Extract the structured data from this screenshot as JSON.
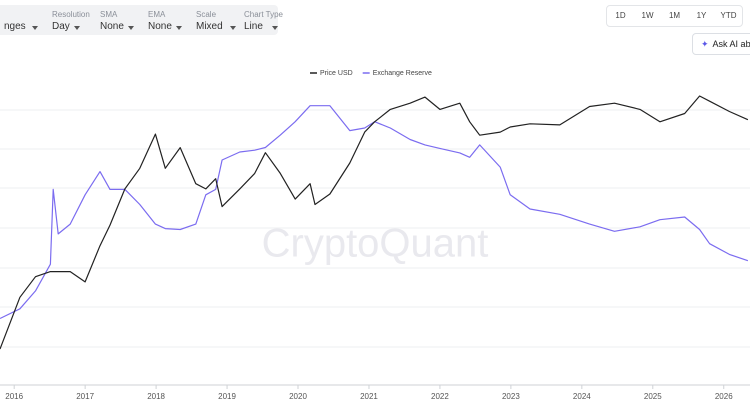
{
  "toolbar": {
    "controls": [
      {
        "value": "nges"
      },
      {
        "label": "Resolution",
        "value": "Day"
      },
      {
        "label": "SMA",
        "value": "None"
      },
      {
        "label": "EMA",
        "value": "None"
      },
      {
        "label": "Scale",
        "value": "Mixed"
      },
      {
        "label": "Chart Type",
        "value": "Line"
      }
    ],
    "ranges": [
      "1D",
      "1W",
      "1M",
      "1Y",
      "YTD"
    ],
    "ask_ai": "Ask AI abou"
  },
  "chart_data": {
    "type": "line",
    "watermark": "CryptoQuant",
    "x": [
      2015.8,
      2016.08,
      2016.3,
      2016.51,
      2016.55,
      2016.62,
      2016.79,
      2017.0,
      2017.21,
      2017.35,
      2017.56,
      2017.77,
      2017.99,
      2018.13,
      2018.34,
      2018.56,
      2018.7,
      2018.84,
      2018.93,
      2019.18,
      2019.39,
      2019.54,
      2019.75,
      2019.96,
      2020.17,
      2020.24,
      2020.45,
      2020.73,
      2020.94,
      2021.08,
      2021.3,
      2021.58,
      2021.79,
      2022.0,
      2022.28,
      2022.42,
      2022.56,
      2022.85,
      2022.99,
      2023.27,
      2023.69,
      2024.11,
      2024.46,
      2024.82,
      2025.1,
      2025.45,
      2025.66,
      2025.8,
      2026.08,
      2026.34
    ],
    "xlim": [
      2015.8,
      2026.37
    ],
    "xticks": [
      2016,
      2017,
      2018,
      2019,
      2020,
      2021,
      2022,
      2023,
      2024,
      2025,
      2026
    ],
    "ylim": [
      200,
      130000
    ],
    "yscale": "log",
    "y2lim": [
      300000,
      3500000
    ],
    "series": [
      {
        "name": "Price USD",
        "color": "#222222",
        "values": [
          405,
          1310,
          2090,
          2350,
          2350,
          2350,
          2350,
          1860,
          4230,
          6760,
          15400,
          24600,
          53400,
          24600,
          39300,
          17300,
          15400,
          19400,
          10300,
          15400,
          21900,
          35000,
          21900,
          12200,
          17300,
          10800,
          13700,
          27700,
          55900,
          70700,
          93700,
          108000,
          124000,
          93700,
          108000,
          70700,
          52100,
          55900,
          62800,
          67500,
          65900,
          100000,
          108000,
          93700,
          70700,
          85300,
          127000,
          113000,
          89400,
          74100
        ]
      },
      {
        "name": "Exchange Reserve",
        "color": "#7b6cf0",
        "axis": "y2",
        "values": [
          990000,
          1100000,
          1300000,
          1600000,
          2440000,
          1940000,
          2050000,
          2380000,
          2640000,
          2440000,
          2440000,
          2270000,
          2050000,
          2000000,
          1990000,
          2050000,
          2380000,
          2440000,
          2770000,
          2860000,
          2880000,
          2910000,
          3050000,
          3200000,
          3380000,
          3380000,
          3380000,
          3100000,
          3130000,
          3200000,
          3130000,
          3000000,
          2940000,
          2900000,
          2850000,
          2800000,
          2940000,
          2690000,
          2380000,
          2220000,
          2160000,
          2050000,
          1970000,
          2020000,
          2100000,
          2130000,
          1990000,
          1830000,
          1710000,
          1640000
        ]
      }
    ]
  }
}
